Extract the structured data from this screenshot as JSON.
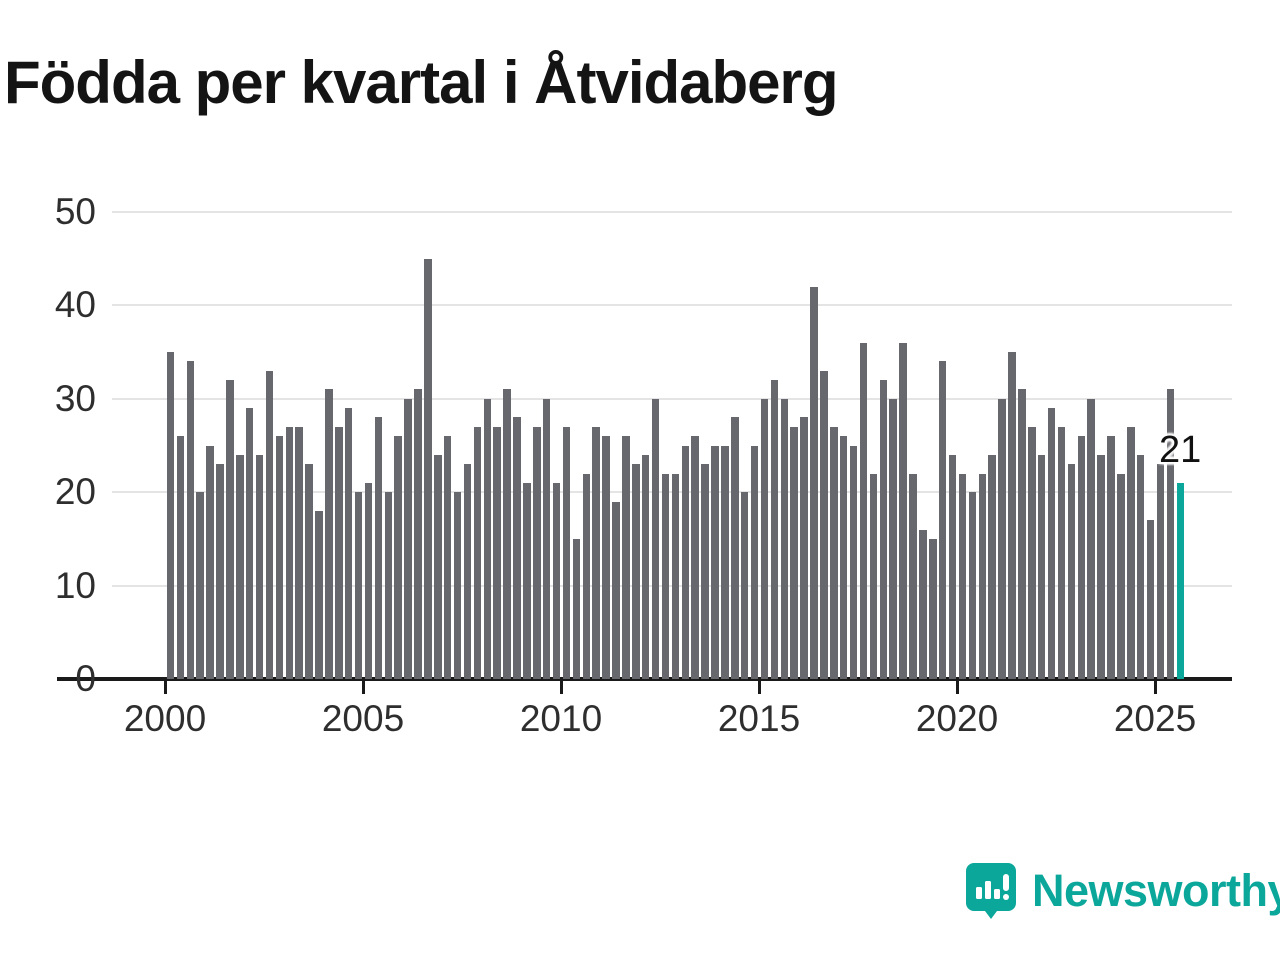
{
  "chart_data": {
    "type": "bar",
    "title": "Födda per kvartal i Åtvidaberg",
    "series_start": "2000Q1",
    "x_unit": "quarter",
    "values": [
      35,
      26,
      34,
      20,
      25,
      23,
      32,
      24,
      29,
      24,
      33,
      26,
      27,
      27,
      23,
      18,
      31,
      27,
      29,
      20,
      21,
      28,
      20,
      26,
      30,
      31,
      45,
      24,
      26,
      20,
      23,
      27,
      30,
      27,
      31,
      28,
      21,
      27,
      30,
      21,
      27,
      15,
      22,
      27,
      26,
      19,
      26,
      23,
      24,
      30,
      22,
      22,
      25,
      26,
      23,
      25,
      25,
      28,
      20,
      25,
      30,
      32,
      30,
      27,
      28,
      42,
      33,
      27,
      26,
      25,
      36,
      22,
      32,
      30,
      36,
      22,
      16,
      15,
      34,
      24,
      22,
      20,
      22,
      24,
      30,
      35,
      31,
      27,
      24,
      29,
      27,
      23,
      26,
      30,
      24,
      26,
      22,
      27,
      24,
      17,
      23,
      31,
      21
    ],
    "xticks": [
      2000,
      2005,
      2010,
      2015,
      2020,
      2025
    ],
    "yticks": [
      0,
      10,
      20,
      30,
      40,
      50
    ],
    "ylim": [
      0,
      50
    ],
    "grid": "horizontal",
    "bar_color": "#67676e",
    "highlight_last": true,
    "highlight_color": "#0ca79b",
    "annotation": {
      "text": "21",
      "applies_to": "last_bar"
    }
  },
  "footer": {
    "logo_text": "Newsworthy",
    "logo_color": "#0ca79b"
  }
}
